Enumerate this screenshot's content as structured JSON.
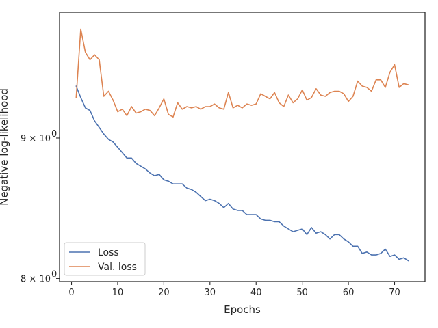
{
  "chart_data": {
    "type": "line",
    "xlabel": "Epochs",
    "ylabel": "Negative log-likelihood",
    "ylog": true,
    "xlim": [
      -2.6,
      76.6
    ],
    "ylim": [
      7.98,
      10.0
    ],
    "xticks": [
      0,
      10,
      20,
      30,
      40,
      50,
      60,
      70
    ],
    "yticks": [
      {
        "value": 8,
        "base": "8 × 10",
        "exp": "0"
      },
      {
        "value": 9,
        "base": "9 × 10",
        "exp": "0"
      }
    ],
    "legend": {
      "position": "lower-left"
    },
    "grid": false,
    "series": [
      {
        "name": "Loss",
        "color": "#4c72b0",
        "x": [
          1,
          2,
          3,
          4,
          5,
          6,
          7,
          8,
          9,
          10,
          11,
          12,
          13,
          14,
          15,
          16,
          17,
          18,
          19,
          20,
          21,
          22,
          23,
          24,
          25,
          26,
          27,
          28,
          29,
          30,
          31,
          32,
          33,
          34,
          35,
          36,
          37,
          38,
          39,
          40,
          41,
          42,
          43,
          44,
          45,
          46,
          47,
          48,
          49,
          50,
          51,
          52,
          53,
          54,
          55,
          56,
          57,
          58,
          59,
          60,
          61,
          62,
          63,
          64,
          65,
          66,
          67,
          68,
          69,
          70,
          71,
          72,
          73
        ],
        "y": [
          9.4,
          9.31,
          9.23,
          9.21,
          9.13,
          9.08,
          9.03,
          8.99,
          8.97,
          8.93,
          8.89,
          8.85,
          8.85,
          8.81,
          8.79,
          8.77,
          8.74,
          8.72,
          8.73,
          8.69,
          8.68,
          8.66,
          8.66,
          8.66,
          8.63,
          8.62,
          8.6,
          8.57,
          8.54,
          8.55,
          8.54,
          8.52,
          8.49,
          8.52,
          8.48,
          8.47,
          8.47,
          8.44,
          8.44,
          8.44,
          8.41,
          8.4,
          8.4,
          8.39,
          8.39,
          8.36,
          8.34,
          8.32,
          8.33,
          8.34,
          8.3,
          8.35,
          8.31,
          8.32,
          8.3,
          8.27,
          8.3,
          8.3,
          8.27,
          8.25,
          8.22,
          8.22,
          8.17,
          8.18,
          8.16,
          8.16,
          8.17,
          8.2,
          8.15,
          8.16,
          8.13,
          8.14,
          8.12
        ]
      },
      {
        "name": "Val. loss",
        "color": "#dd8452",
        "x": [
          1,
          2,
          3,
          4,
          5,
          6,
          7,
          8,
          9,
          10,
          11,
          12,
          13,
          14,
          15,
          16,
          17,
          18,
          19,
          20,
          21,
          22,
          23,
          24,
          25,
          26,
          27,
          28,
          29,
          30,
          31,
          32,
          33,
          34,
          35,
          36,
          37,
          38,
          39,
          40,
          41,
          42,
          43,
          44,
          45,
          46,
          47,
          48,
          49,
          50,
          51,
          52,
          53,
          54,
          55,
          56,
          57,
          58,
          59,
          60,
          61,
          62,
          63,
          64,
          65,
          66,
          67,
          68,
          69,
          70,
          71,
          72,
          73
        ],
        "y": [
          9.31,
          9.86,
          9.67,
          9.61,
          9.65,
          9.61,
          9.32,
          9.36,
          9.29,
          9.2,
          9.22,
          9.17,
          9.24,
          9.19,
          9.2,
          9.22,
          9.21,
          9.17,
          9.23,
          9.3,
          9.18,
          9.16,
          9.27,
          9.22,
          9.24,
          9.23,
          9.24,
          9.22,
          9.24,
          9.24,
          9.26,
          9.23,
          9.22,
          9.35,
          9.23,
          9.25,
          9.23,
          9.26,
          9.25,
          9.26,
          9.34,
          9.32,
          9.3,
          9.35,
          9.27,
          9.24,
          9.33,
          9.27,
          9.3,
          9.37,
          9.29,
          9.31,
          9.38,
          9.33,
          9.32,
          9.35,
          9.36,
          9.36,
          9.34,
          9.28,
          9.32,
          9.44,
          9.4,
          9.39,
          9.36,
          9.45,
          9.45,
          9.39,
          9.51,
          9.57,
          9.39,
          9.42,
          9.41
        ]
      }
    ]
  }
}
